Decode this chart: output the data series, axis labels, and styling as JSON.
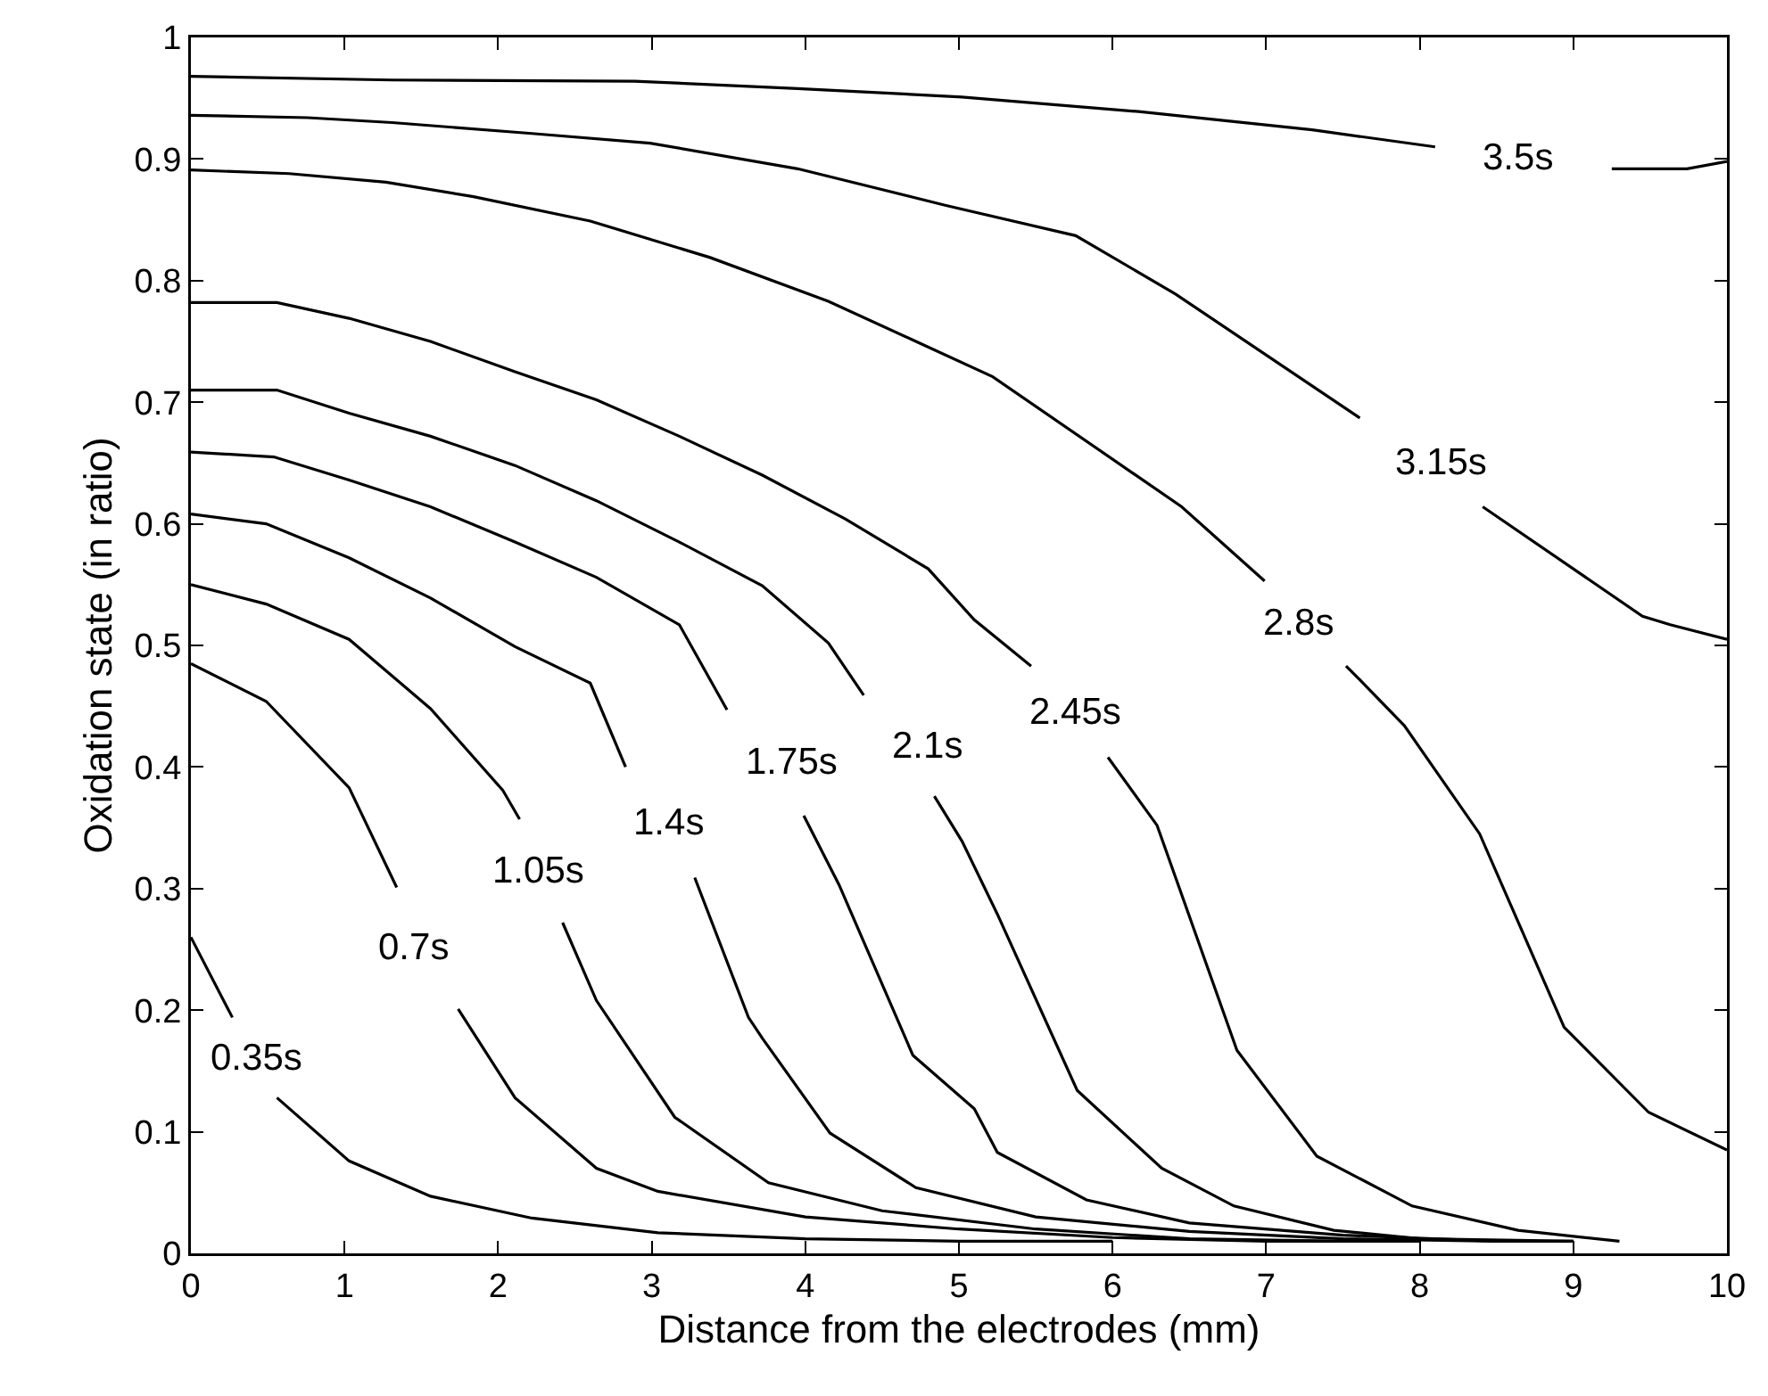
{
  "chart_data": {
    "type": "line",
    "xlabel": "Distance from the electrodes (mm)",
    "ylabel": "Oxidation state (in ratio)",
    "xlim": [
      0,
      10
    ],
    "xticks": [
      0,
      1,
      2,
      3,
      4,
      5,
      6,
      7,
      8,
      9,
      10
    ],
    "ylim": [
      0,
      1
    ],
    "yticks": [
      0,
      0.1,
      0.2,
      0.3,
      0.4,
      0.5,
      0.6,
      0.7,
      0.8,
      0.9,
      1
    ],
    "grid": false,
    "legend": false,
    "line_style": "solid",
    "series": [
      {
        "name": "0.35s",
        "color": "#000000",
        "x": [
          0,
          0.27,
          0.42,
          0.56,
          1.03,
          1.56,
          2.22,
          3.04,
          4,
          5,
          6
        ],
        "values": [
          0.26,
          0.194,
          null,
          0.128,
          0.076,
          0.047,
          0.029,
          0.017,
          0.012,
          0.01,
          0.01
        ]
      },
      {
        "name": "0.7s",
        "color": "#000000",
        "x": [
          0,
          0.49,
          1.03,
          1.34,
          1.45,
          1.74,
          2.11,
          2.64,
          3.04,
          4,
          5,
          6,
          7,
          8
        ],
        "values": [
          0.485,
          0.454,
          0.383,
          0.301,
          null,
          0.201,
          0.128,
          0.07,
          0.051,
          0.03,
          0.02,
          0.013,
          0.01,
          0.01
        ]
      },
      {
        "name": "1.05s",
        "color": "#000000",
        "x": [
          0,
          0.49,
          1.03,
          1.56,
          2.03,
          2.14,
          2.26,
          2.42,
          2.64,
          3.15,
          3.76,
          4.5,
          5.5,
          6.5,
          7.5
        ],
        "values": [
          0.55,
          0.534,
          0.505,
          0.448,
          0.381,
          0.357,
          null,
          0.272,
          0.208,
          0.112,
          0.058,
          0.035,
          0.02,
          0.012,
          0.01
        ]
      },
      {
        "name": "1.4s",
        "color": "#000000",
        "x": [
          0,
          0.49,
          1.03,
          1.56,
          2.11,
          2.6,
          2.83,
          3.11,
          3.28,
          3.63,
          3.72,
          4.16,
          4.72,
          5.5,
          6.5,
          7.5,
          8.5
        ],
        "values": [
          0.608,
          0.6,
          0.572,
          0.539,
          0.499,
          0.469,
          0.4,
          null,
          0.309,
          0.194,
          0.177,
          0.099,
          0.054,
          0.03,
          0.018,
          0.012,
          0.01
        ]
      },
      {
        "name": "1.75s",
        "color": "#000000",
        "x": [
          0,
          0.54,
          1.03,
          1.56,
          2.11,
          2.64,
          3.18,
          3.49,
          3.91,
          3.99,
          4.22,
          4.7,
          5.1,
          5.25,
          5.83,
          6.5,
          7.5,
          8.5,
          9
        ],
        "values": [
          0.659,
          0.655,
          0.636,
          0.614,
          0.585,
          0.556,
          0.517,
          0.447,
          null,
          0.36,
          0.303,
          0.163,
          0.119,
          0.083,
          0.044,
          0.025,
          0.015,
          0.01,
          0.01
        ]
      },
      {
        "name": "2.1s",
        "color": "#000000",
        "x": [
          0,
          0.56,
          1.03,
          1.56,
          2.11,
          2.64,
          3.18,
          3.72,
          4.15,
          4.38,
          4.8,
          4.84,
          5.02,
          5.25,
          5.77,
          6.32,
          6.79,
          7.44,
          8,
          9
        ],
        "values": [
          0.71,
          0.71,
          0.691,
          0.672,
          0.648,
          0.619,
          0.585,
          0.549,
          0.502,
          0.459,
          null,
          0.376,
          0.339,
          0.279,
          0.134,
          0.07,
          0.039,
          0.019,
          0.012,
          0.01
        ]
      },
      {
        "name": "2.45s",
        "color": "#000000",
        "x": [
          0,
          0.56,
          1.03,
          1.56,
          2.11,
          2.64,
          3.18,
          3.72,
          4.26,
          4.8,
          5.1,
          5.47,
          5.76,
          5.97,
          6.29,
          6.81,
          7.33,
          7.95,
          8.64,
          9.3
        ],
        "values": [
          0.782,
          0.782,
          0.769,
          0.75,
          0.725,
          0.702,
          0.672,
          0.64,
          0.604,
          0.563,
          0.521,
          0.483,
          null,
          0.408,
          0.352,
          0.167,
          0.08,
          0.039,
          0.019,
          0.01
        ]
      },
      {
        "name": "2.8s",
        "color": "#000000",
        "x": [
          0,
          0.64,
          1.27,
          1.84,
          2.6,
          3.38,
          4.15,
          4.72,
          5.22,
          6.45,
          6.99,
          7.21,
          7.52,
          7.6,
          7.9,
          8.39,
          8.94,
          9.49,
          10
        ],
        "values": [
          0.891,
          0.888,
          0.881,
          0.869,
          0.849,
          0.819,
          0.783,
          0.75,
          0.721,
          0.614,
          0.553,
          null,
          0.483,
          0.473,
          0.434,
          0.345,
          0.186,
          0.116,
          0.085
        ]
      },
      {
        "name": "3.15s",
        "color": "#000000",
        "x": [
          0,
          0.76,
          1.31,
          2.22,
          2.99,
          3.95,
          4.91,
          5.76,
          6.41,
          7.61,
          8.14,
          8.41,
          9.45,
          9.63,
          10
        ],
        "values": [
          0.936,
          0.934,
          0.93,
          0.921,
          0.913,
          0.892,
          0.862,
          0.837,
          0.789,
          0.687,
          null,
          0.614,
          0.524,
          0.517,
          0.505
        ]
      },
      {
        "name": "3.5s",
        "color": "#000000",
        "x": [
          0,
          1.31,
          2.89,
          3.95,
          5.02,
          6.17,
          7.3,
          8.1,
          8.64,
          9.25,
          9.74,
          10
        ],
        "values": [
          0.968,
          0.965,
          0.964,
          0.958,
          0.951,
          0.939,
          0.924,
          0.91,
          null,
          0.892,
          0.892,
          0.898
        ]
      }
    ]
  }
}
